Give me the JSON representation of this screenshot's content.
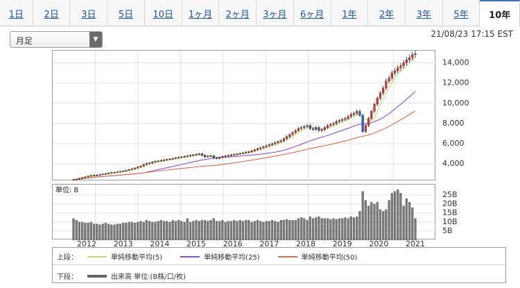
{
  "tabs": [
    {
      "label": "1日",
      "active": false
    },
    {
      "label": "2日",
      "active": false
    },
    {
      "label": "3日",
      "active": false
    },
    {
      "label": "5日",
      "active": false
    },
    {
      "label": "10日",
      "active": false
    },
    {
      "label": "1ヶ月",
      "active": false
    },
    {
      "label": "2ヶ月",
      "active": false
    },
    {
      "label": "3ヶ月",
      "active": false
    },
    {
      "label": "6ヶ月",
      "active": false
    },
    {
      "label": "1年",
      "active": false
    },
    {
      "label": "2年",
      "active": false
    },
    {
      "label": "3年",
      "active": false
    },
    {
      "label": "5年",
      "active": false
    },
    {
      "label": "10年",
      "active": true
    }
  ],
  "period_select": {
    "value": "月足"
  },
  "timestamp": "21/08/23 17:15 EST",
  "legend": {
    "upper_prefix": "上段：",
    "lower_prefix": "下段：",
    "ma": [
      {
        "name": "単純移動平均(5)",
        "color": "#c8d86a"
      },
      {
        "name": "単純移動平均(25)",
        "color": "#8a4fd8"
      },
      {
        "name": "単純移動平均(50)",
        "color": "#e06a4c"
      }
    ],
    "volume_label": "出来高 単位:(B株/口/枚)",
    "volume_color": "#666666"
  },
  "chart_data": [
    {
      "type": "candlestick",
      "x_axis": {
        "labels": [
          "2012",
          "2013",
          "2014",
          "2015",
          "2016",
          "2017",
          "2018",
          "2019",
          "2020",
          "2021"
        ]
      },
      "y_axis": {
        "range": [
          2300,
          15200
        ],
        "ticks": [
          4000,
          6000,
          8000,
          10000,
          12000,
          14000
        ],
        "tick_labels": [
          "4,000",
          "6,000",
          "8,000",
          "10,000",
          "12,000",
          "14,000"
        ]
      },
      "grid": true,
      "close_by_month_estimate": [
        2450,
        2500,
        2580,
        2650,
        2720,
        2800,
        2860,
        2900,
        2880,
        2950,
        3000,
        3050,
        3100,
        3150,
        3180,
        3220,
        3260,
        3300,
        3380,
        3450,
        3520,
        3600,
        3700,
        3800,
        3950,
        4050,
        4100,
        4200,
        4280,
        4300,
        4350,
        4400,
        4450,
        4500,
        4550,
        4600,
        4650,
        4700,
        4750,
        4800,
        4850,
        4900,
        4950,
        5000,
        4850,
        4700,
        4750,
        4800,
        4600,
        4550,
        4650,
        4750,
        4800,
        4850,
        4900,
        4950,
        5000,
        5050,
        5100,
        5150,
        5200,
        5300,
        5400,
        5500,
        5600,
        5700,
        5800,
        5900,
        6000,
        6100,
        6200,
        6300,
        6500,
        6700,
        6900,
        7100,
        7300,
        7500,
        7600,
        7700,
        7800,
        7500,
        7400,
        7600,
        7300,
        7400,
        7600,
        7800,
        7900,
        8000,
        8200,
        8300,
        8400,
        8500,
        8700,
        8900,
        9000,
        9200,
        8800,
        7200,
        7800,
        8500,
        9200,
        9900,
        10500,
        11000,
        11500,
        12200,
        12500,
        13000,
        13200,
        13500,
        13700,
        14000,
        14300,
        14500,
        14800,
        14900
      ],
      "moving_averages": [
        {
          "name": "単純移動平均(5)"
        },
        {
          "name": "単純移動平均(25)"
        },
        {
          "name": "単純移動平均(50)"
        }
      ]
    },
    {
      "type": "bar",
      "title": "単位: B",
      "x_axis": {
        "labels": [
          "2012",
          "2013",
          "2014",
          "2015",
          "2016",
          "2017",
          "2018",
          "2019",
          "2020",
          "2021"
        ]
      },
      "y_axis": {
        "range": [
          0,
          30
        ],
        "ticks": [
          5,
          10,
          15,
          20,
          25
        ],
        "tick_labels": [
          "5B",
          "10B",
          "15B",
          "20B",
          "25B"
        ]
      },
      "values_estimate": [
        12,
        11,
        10,
        10,
        9.5,
        9.5,
        10,
        9,
        9,
        8.5,
        9,
        9.5,
        9,
        8.5,
        8.5,
        9,
        9,
        9.5,
        9.5,
        10,
        10,
        9.5,
        10,
        10.5,
        10,
        11,
        10.5,
        10,
        10,
        10.5,
        11,
        10.5,
        10.5,
        10,
        11,
        10.5,
        11,
        10.5,
        10,
        12,
        10,
        10.5,
        11,
        10.5,
        11,
        11,
        10.5,
        11,
        12,
        10.5,
        10.5,
        11,
        10,
        10.5,
        10.5,
        11,
        10.5,
        11,
        10.5,
        11,
        11,
        10,
        10.5,
        11,
        10.5,
        10,
        10.5,
        10.5,
        11,
        10.5,
        10,
        11,
        11,
        11.5,
        11,
        11,
        11,
        12,
        12.5,
        12,
        11,
        13,
        12,
        12.5,
        13,
        12,
        12,
        12,
        11.5,
        12,
        11.5,
        12,
        12,
        12.5,
        12,
        13,
        12.5,
        13,
        16,
        27,
        22,
        19,
        21,
        20,
        21,
        17,
        16,
        17,
        22,
        26,
        27,
        28,
        26,
        19,
        23,
        21,
        18,
        12
      ]
    }
  ]
}
